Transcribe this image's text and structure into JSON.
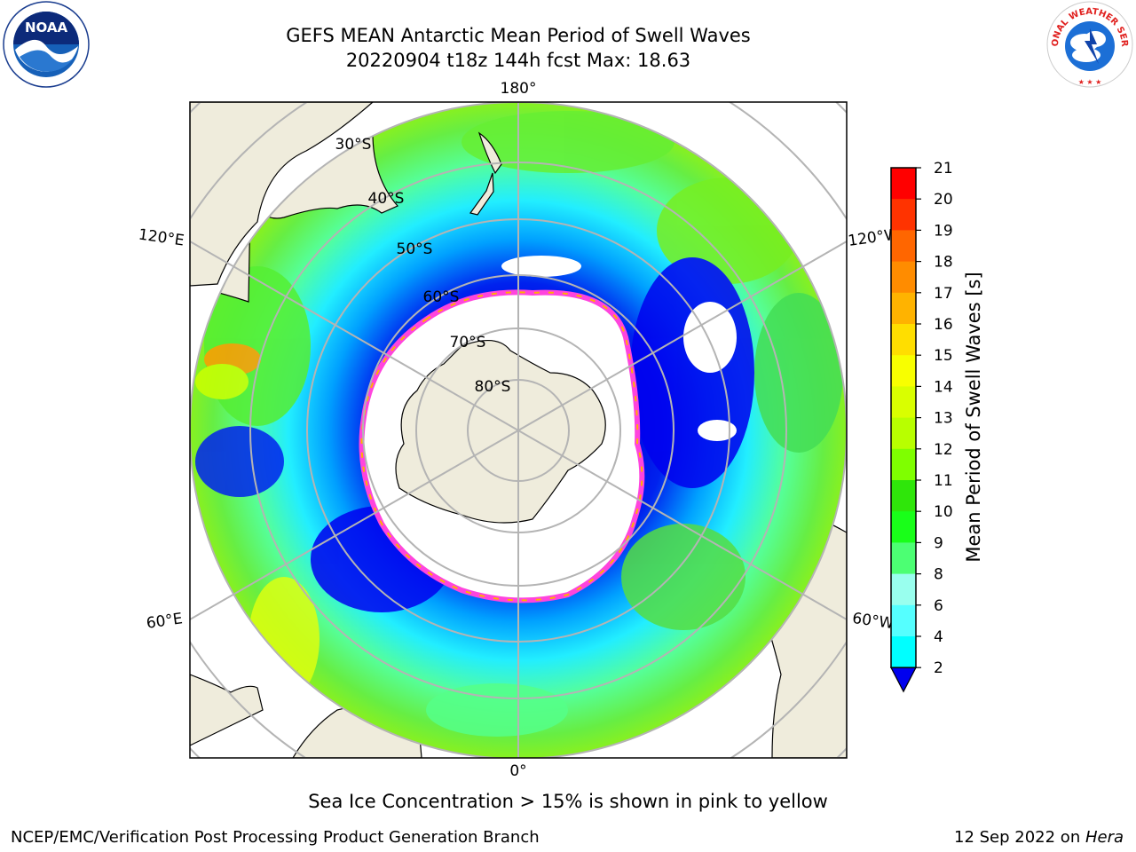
{
  "title_line1": "GEFS MEAN Antarctic Mean Period of Swell Waves",
  "title_line2": "20220904 t18z 144h fcst   Max: 18.63",
  "logos": {
    "left": "NOAA",
    "right": "NATIONAL WEATHER SERVICE",
    "right_icon": "nws-logo-icon",
    "left_icon": "noaa-logo-icon"
  },
  "map": {
    "projection": "south-polar-stereographic",
    "longitude_labels": {
      "top": "180°",
      "bottom": "0°",
      "upper_left": "120°E",
      "upper_right": "120°W",
      "lower_left": "60°E",
      "lower_right": "60°W"
    },
    "latitude_labels": [
      "30°S",
      "40°S",
      "50°S",
      "60°S",
      "70°S",
      "80°S"
    ],
    "colors": {
      "land": "#efecdc",
      "sea_ice_edge": "#ff44dd",
      "sea_ice_inner": "#ffb000",
      "grid": "#b4b4b4"
    }
  },
  "colorbar": {
    "label": "Mean Period of Swell Waves [s]",
    "ticks": [
      "21",
      "20",
      "19",
      "18",
      "17",
      "16",
      "15",
      "14",
      "13",
      "12",
      "11",
      "10",
      "9",
      "8",
      "6",
      "4",
      "2"
    ],
    "colors": [
      "#ff0000",
      "#ff3300",
      "#ff6600",
      "#ff8c00",
      "#ffb300",
      "#ffde00",
      "#f8ff00",
      "#d9ff00",
      "#b8ff00",
      "#7fff00",
      "#2fe60a",
      "#19ff19",
      "#4cff73",
      "#99ffee",
      "#55ffff",
      "#00ffff",
      "#0080ff"
    ],
    "extend_color": "#0000ee"
  },
  "caption": "Sea Ice Concentration > 15% is shown in pink to yellow",
  "footer_left": "NCEP/EMC/Verification Post Processing Product Generation Branch",
  "footer_right_prefix": "12 Sep 2022 on ",
  "footer_right_host": "Hera"
}
